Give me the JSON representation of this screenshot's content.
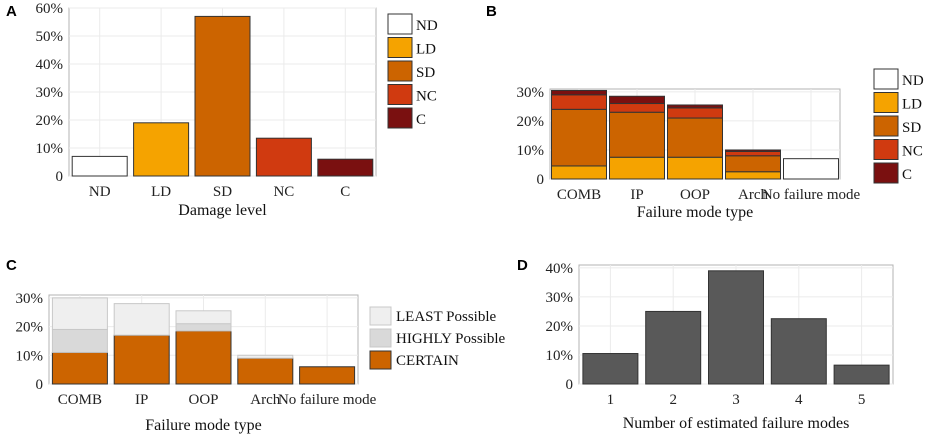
{
  "colors": {
    "ND": "#ffffff",
    "LD": "#f5a300",
    "SD": "#cc6400",
    "NC": "#d03a10",
    "C": "#7a1010",
    "LEAST": "#efefef",
    "HIGHLY": "#d9d9d9",
    "CERTAIN": "#cc6400",
    "grey": "#595959"
  },
  "chart_data": [
    {
      "panel": "A",
      "type": "bar",
      "categories": [
        "ND",
        "LD",
        "SD",
        "NC",
        "C"
      ],
      "values": [
        7,
        19,
        57,
        13.5,
        6
      ],
      "xlabel": "Damage level",
      "ylabel": "",
      "ylim": [
        0,
        60
      ],
      "yticks": [
        "0",
        "10%",
        "20%",
        "30%",
        "40%",
        "50%",
        "60%"
      ],
      "legend": [
        "ND",
        "LD",
        "SD",
        "NC",
        "C"
      ],
      "legend_position": "right"
    },
    {
      "panel": "B",
      "type": "bar",
      "stacked": true,
      "categories": [
        "COMB",
        "IP",
        "OOP",
        "Arch",
        "No failure mode"
      ],
      "series": [
        {
          "name": "LD",
          "values": [
            4.5,
            7.5,
            7.5,
            2.5,
            0
          ]
        },
        {
          "name": "SD",
          "values": [
            19.5,
            15.5,
            13.5,
            5.5,
            0
          ]
        },
        {
          "name": "NC",
          "values": [
            5,
            3,
            3.5,
            1.5,
            0
          ]
        },
        {
          "name": "C",
          "values": [
            1.5,
            2.5,
            1,
            0.5,
            0
          ]
        },
        {
          "name": "ND",
          "values": [
            0,
            0,
            0,
            0,
            7
          ]
        }
      ],
      "xlabel": "Failure mode type",
      "ylabel": "",
      "ylim": [
        0,
        31
      ],
      "yticks": [
        "0",
        "10%",
        "20%",
        "30%"
      ],
      "legend": [
        "ND",
        "LD",
        "SD",
        "NC",
        "C"
      ],
      "legend_position": "right"
    },
    {
      "panel": "C",
      "type": "bar",
      "stacked": true,
      "categories": [
        "COMB",
        "IP",
        "OOP",
        "Arch",
        "No failure mode"
      ],
      "series": [
        {
          "name": "CERTAIN",
          "values": [
            11,
            17,
            18.5,
            9,
            6
          ]
        },
        {
          "name": "HIGHLY Possible",
          "values": [
            8,
            0,
            2.5,
            0,
            0
          ]
        },
        {
          "name": "LEAST Possible",
          "values": [
            11,
            11,
            4.5,
            1,
            0
          ]
        }
      ],
      "xlabel": "Failure mode type",
      "ylabel": "",
      "ylim": [
        0,
        31
      ],
      "yticks": [
        "0",
        "10%",
        "20%",
        "30%"
      ],
      "legend": [
        "LEAST Possible",
        "HIGHLY Possible",
        "CERTAIN"
      ],
      "legend_position": "right"
    },
    {
      "panel": "D",
      "type": "bar",
      "categories": [
        "1",
        "2",
        "3",
        "4",
        "5"
      ],
      "values": [
        10.5,
        25,
        39,
        22.5,
        6.5
      ],
      "xlabel": "Number of estimated failure modes",
      "ylabel": "",
      "ylim": [
        0,
        41
      ],
      "yticks": [
        "0",
        "10%",
        "20%",
        "30%",
        "40%"
      ]
    }
  ]
}
